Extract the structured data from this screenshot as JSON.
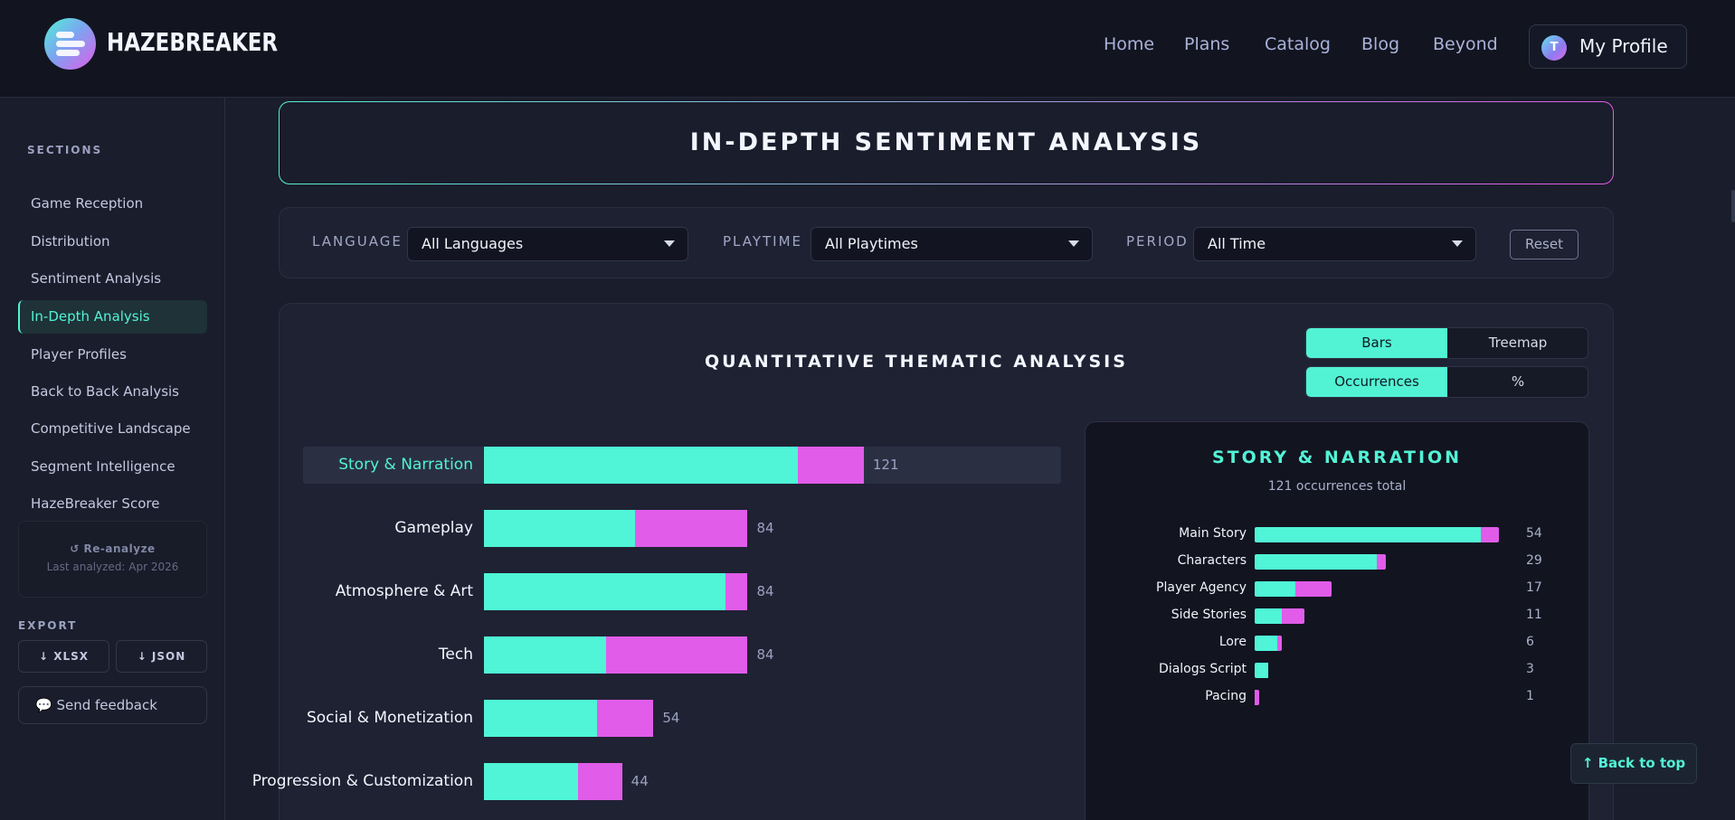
{
  "app": {
    "brand": "HAZEBREAKER",
    "nav": [
      "Home",
      "Plans",
      "Catalog",
      "Blog",
      "Beyond"
    ],
    "profile": {
      "initial": "T",
      "label": "My Profile"
    }
  },
  "sidebar": {
    "section_title": "SECTIONS",
    "items": [
      {
        "label": "Game Reception",
        "active": false
      },
      {
        "label": "Distribution",
        "active": false
      },
      {
        "label": "Sentiment Analysis",
        "active": false
      },
      {
        "label": "In-Depth Analysis",
        "active": true
      },
      {
        "label": "Player Profiles",
        "active": false
      },
      {
        "label": "Back to Back Analysis",
        "active": false
      },
      {
        "label": "Competitive Landscape",
        "active": false
      },
      {
        "label": "Segment Intelligence",
        "active": false
      },
      {
        "label": "HazeBreaker Score",
        "active": false
      }
    ],
    "reanalyze_label": "↺ Re-analyze",
    "last_analyzed": "Last analyzed: Apr 2026",
    "export_title": "EXPORT",
    "export_xlsx": "↓ XLSX",
    "export_json": "↓ JSON",
    "feedback": "💬 Send feedback"
  },
  "page": {
    "title": "IN-DEPTH SENTIMENT ANALYSIS",
    "back_to_top": "↑ Back to top"
  },
  "filters": {
    "language_label": "LANGUAGE",
    "language_value": "All Languages",
    "playtime_label": "PLAYTIME",
    "playtime_value": "All Playtimes",
    "period_label": "PERIOD",
    "period_value": "All Time",
    "reset": "Reset"
  },
  "panel": {
    "title": "QUANTITATIVE THEMATIC ANALYSIS",
    "view_toggle": [
      "Bars",
      "Treemap"
    ],
    "view_selected": "Bars",
    "metric_toggle": [
      "Occurrences",
      "%"
    ],
    "metric_selected": "Occurrences"
  },
  "colors": {
    "accent": "#52f2d5",
    "positive": "#4ff5d6",
    "negative": "#e05ce9",
    "bg": "#1a1d2b"
  },
  "chart_data": [
    {
      "type": "bar",
      "orientation": "horizontal",
      "stacked": true,
      "categories": [
        "Story & Narration",
        "Gameplay",
        "Atmosphere & Art",
        "Tech",
        "Social & Monetization",
        "Progression & Customization"
      ],
      "totals": [
        121,
        84,
        84,
        84,
        54,
        44
      ],
      "series": [
        {
          "color": "#4ff5d6",
          "values": [
            100,
            48,
            77,
            39,
            36,
            30
          ]
        },
        {
          "color": "#e05ce9",
          "values": [
            21,
            36,
            7,
            45,
            18,
            14
          ]
        }
      ],
      "selected_category": "Story & Narration"
    },
    {
      "type": "bar",
      "orientation": "horizontal",
      "stacked": true,
      "title": "STORY & NARRATION",
      "subtitle": "121 occurrences total",
      "categories": [
        "Main Story",
        "Characters",
        "Player Agency",
        "Side Stories",
        "Lore",
        "Dialogs Script",
        "Pacing"
      ],
      "totals": [
        54,
        29,
        17,
        11,
        6,
        3,
        1
      ],
      "series": [
        {
          "color": "#4ff5d6",
          "values": [
            50,
            27,
            9,
            6,
            5,
            3,
            0
          ]
        },
        {
          "color": "#e05ce9",
          "values": [
            4,
            2,
            8,
            5,
            1,
            0,
            1
          ]
        }
      ]
    }
  ]
}
